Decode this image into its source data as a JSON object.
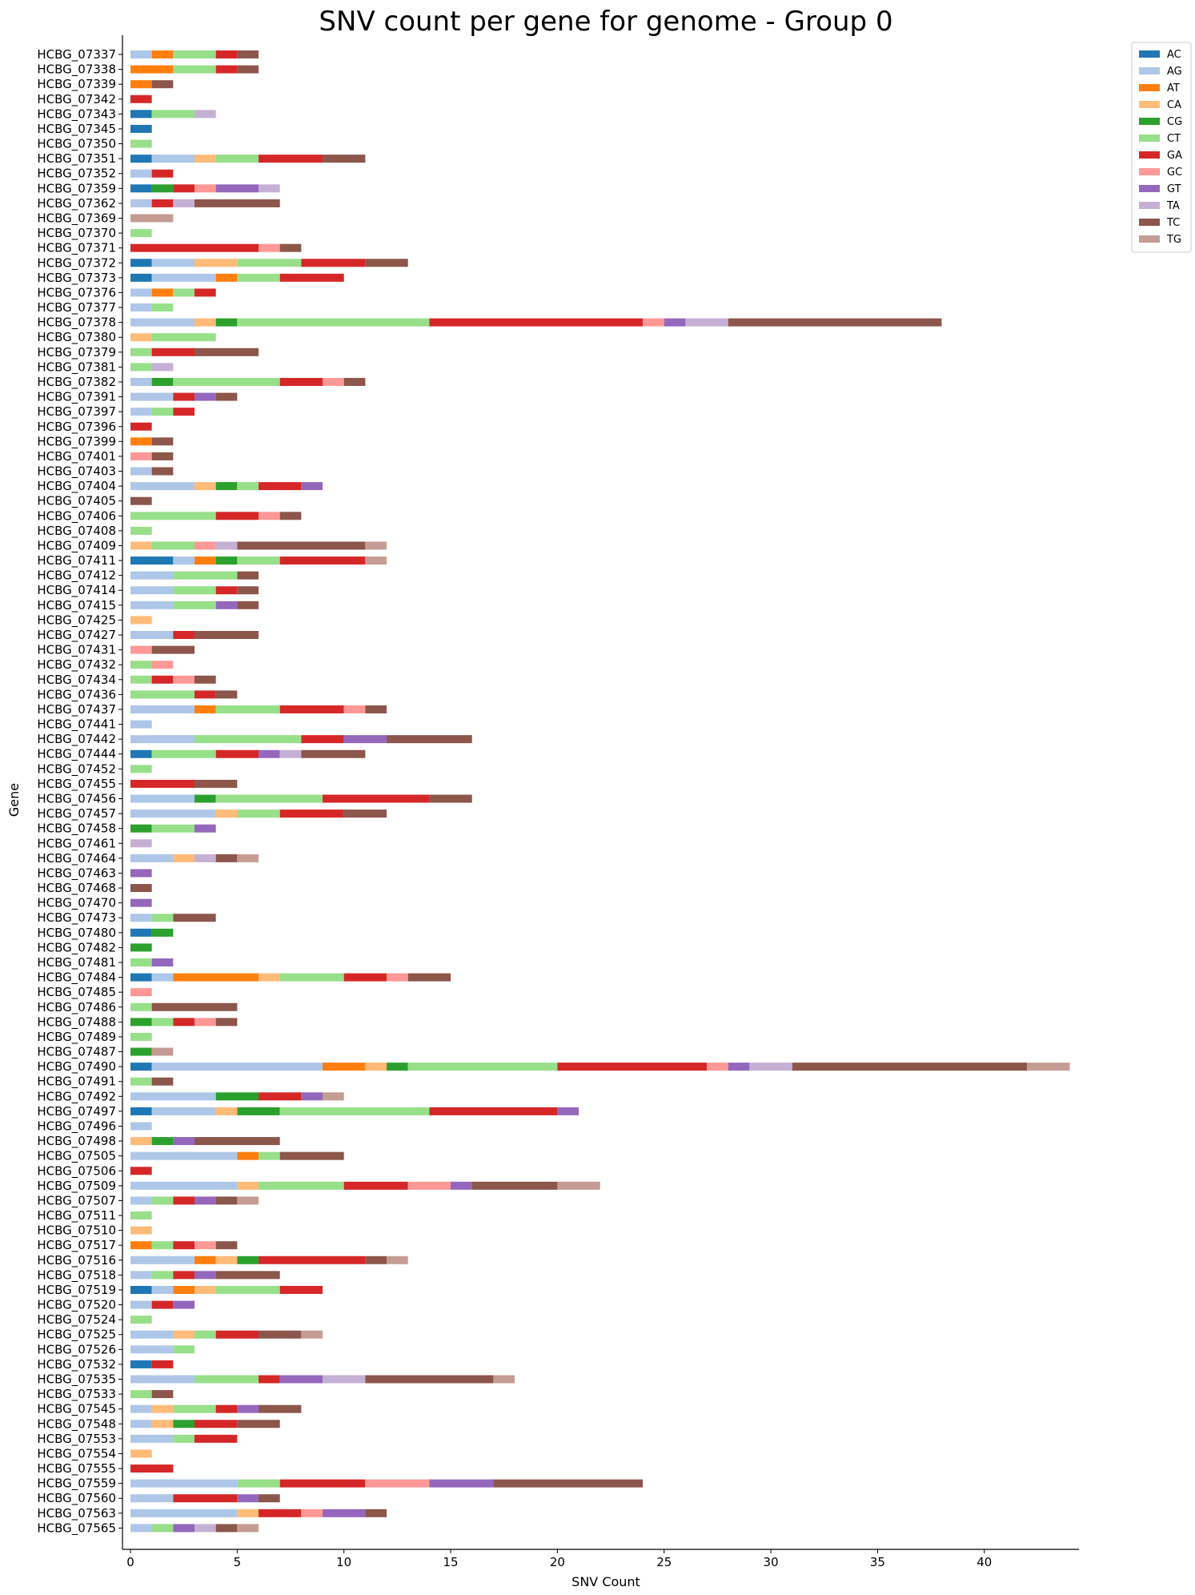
{
  "chart_data": {
    "type": "bar",
    "orientation": "horizontal",
    "stacked": true,
    "title": "SNV count per gene for genome - Group 0",
    "xlabel": "SNV Count",
    "ylabel": "Gene",
    "xlim": [
      0,
      44.5
    ],
    "xticks": [
      0,
      5,
      10,
      15,
      20,
      25,
      30,
      35,
      40
    ],
    "grid": false,
    "legend_position": "top-right outside",
    "colors": {
      "AC": "#1f77b4",
      "AG": "#aec7e8",
      "AT": "#ff7f0e",
      "CA": "#ffbb78",
      "CG": "#2ca02c",
      "CT": "#98df8a",
      "GA": "#d62728",
      "GC": "#ff9896",
      "GT": "#9467bd",
      "TA": "#c5b0d5",
      "TC": "#8c564b",
      "TG": "#c49c94"
    },
    "categories": [
      "HCBG_07337",
      "HCBG_07338",
      "HCBG_07339",
      "HCBG_07342",
      "HCBG_07343",
      "HCBG_07345",
      "HCBG_07350",
      "HCBG_07351",
      "HCBG_07352",
      "HCBG_07359",
      "HCBG_07362",
      "HCBG_07369",
      "HCBG_07370",
      "HCBG_07371",
      "HCBG_07372",
      "HCBG_07373",
      "HCBG_07376",
      "HCBG_07377",
      "HCBG_07378",
      "HCBG_07380",
      "HCBG_07379",
      "HCBG_07381",
      "HCBG_07382",
      "HCBG_07391",
      "HCBG_07397",
      "HCBG_07396",
      "HCBG_07399",
      "HCBG_07401",
      "HCBG_07403",
      "HCBG_07404",
      "HCBG_07405",
      "HCBG_07406",
      "HCBG_07408",
      "HCBG_07409",
      "HCBG_07411",
      "HCBG_07412",
      "HCBG_07414",
      "HCBG_07415",
      "HCBG_07425",
      "HCBG_07427",
      "HCBG_07431",
      "HCBG_07432",
      "HCBG_07434",
      "HCBG_07436",
      "HCBG_07437",
      "HCBG_07441",
      "HCBG_07442",
      "HCBG_07444",
      "HCBG_07452",
      "HCBG_07455",
      "HCBG_07456",
      "HCBG_07457",
      "HCBG_07458",
      "HCBG_07461",
      "HCBG_07464",
      "HCBG_07463",
      "HCBG_07468",
      "HCBG_07470",
      "HCBG_07473",
      "HCBG_07480",
      "HCBG_07482",
      "HCBG_07481",
      "HCBG_07484",
      "HCBG_07485",
      "HCBG_07486",
      "HCBG_07488",
      "HCBG_07489",
      "HCBG_07487",
      "HCBG_07490",
      "HCBG_07491",
      "HCBG_07492",
      "HCBG_07497",
      "HCBG_07496",
      "HCBG_07498",
      "HCBG_07505",
      "HCBG_07506",
      "HCBG_07509",
      "HCBG_07507",
      "HCBG_07511",
      "HCBG_07510",
      "HCBG_07517",
      "HCBG_07516",
      "HCBG_07518",
      "HCBG_07519",
      "HCBG_07520",
      "HCBG_07524",
      "HCBG_07525",
      "HCBG_07526",
      "HCBG_07532",
      "HCBG_07535",
      "HCBG_07533",
      "HCBG_07545",
      "HCBG_07548",
      "HCBG_07553",
      "HCBG_07554",
      "HCBG_07555",
      "HCBG_07559",
      "HCBG_07560",
      "HCBG_07563",
      "HCBG_07565"
    ],
    "series": [
      {
        "name": "AC",
        "values": [
          0,
          0,
          0,
          0,
          1,
          1,
          0,
          1,
          0,
          1,
          0,
          0,
          0,
          0,
          1,
          1,
          0,
          0,
          0,
          0,
          0,
          0,
          0,
          0,
          0,
          0,
          0,
          0,
          0,
          0,
          0,
          0,
          0,
          0,
          2,
          0,
          0,
          0,
          0,
          0,
          0,
          0,
          0,
          0,
          0,
          0,
          0,
          1,
          0,
          0,
          0,
          0,
          0,
          0,
          0,
          0,
          0,
          0,
          0,
          1,
          0,
          0,
          1,
          0,
          0,
          0,
          0,
          0,
          1,
          0,
          0,
          1,
          0,
          0,
          0,
          0,
          0,
          0,
          0,
          0,
          0,
          0,
          0,
          1,
          0,
          0,
          0,
          0,
          1,
          0,
          0,
          0,
          0,
          0,
          0,
          0,
          0,
          0,
          0,
          0
        ]
      },
      {
        "name": "AG",
        "values": [
          1,
          0,
          0,
          0,
          0,
          0,
          0,
          2,
          1,
          0,
          1,
          0,
          0,
          0,
          2,
          3,
          1,
          1,
          3,
          0,
          0,
          0,
          1,
          2,
          1,
          0,
          0,
          0,
          1,
          3,
          0,
          0,
          0,
          0,
          1,
          2,
          2,
          2,
          0,
          2,
          0,
          0,
          0,
          0,
          3,
          1,
          3,
          0,
          0,
          0,
          3,
          4,
          0,
          0,
          2,
          0,
          0,
          0,
          1,
          0,
          0,
          0,
          1,
          0,
          0,
          0,
          0,
          0,
          8,
          0,
          4,
          3,
          1,
          0,
          5,
          0,
          5,
          1,
          0,
          0,
          0,
          3,
          1,
          1,
          1,
          0,
          2,
          2,
          0,
          3,
          0,
          1,
          1,
          2,
          0,
          0,
          5,
          2,
          5,
          1
        ]
      },
      {
        "name": "AT",
        "values": [
          1,
          2,
          1,
          0,
          0,
          0,
          0,
          0,
          0,
          0,
          0,
          0,
          0,
          0,
          0,
          1,
          1,
          0,
          0,
          0,
          0,
          0,
          0,
          0,
          0,
          0,
          1,
          0,
          0,
          0,
          0,
          0,
          0,
          0,
          1,
          0,
          0,
          0,
          0,
          0,
          0,
          0,
          0,
          0,
          1,
          0,
          0,
          0,
          0,
          0,
          0,
          0,
          0,
          0,
          0,
          0,
          0,
          0,
          0,
          0,
          0,
          0,
          4,
          0,
          0,
          0,
          0,
          0,
          2,
          0,
          0,
          0,
          0,
          0,
          1,
          0,
          0,
          0,
          0,
          0,
          1,
          1,
          0,
          1,
          0,
          0,
          0,
          0,
          0,
          0,
          0,
          0,
          0,
          0,
          0,
          0,
          0,
          0,
          0,
          0
        ]
      },
      {
        "name": "CA",
        "values": [
          0,
          0,
          0,
          0,
          0,
          0,
          0,
          1,
          0,
          0,
          0,
          0,
          0,
          0,
          2,
          0,
          0,
          0,
          1,
          1,
          0,
          0,
          0,
          0,
          0,
          0,
          0,
          0,
          0,
          1,
          0,
          0,
          0,
          1,
          0,
          0,
          0,
          0,
          1,
          0,
          0,
          0,
          0,
          0,
          0,
          0,
          0,
          0,
          0,
          0,
          0,
          1,
          0,
          0,
          1,
          0,
          0,
          0,
          0,
          0,
          0,
          0,
          1,
          0,
          0,
          0,
          0,
          0,
          1,
          0,
          0,
          1,
          0,
          1,
          0,
          0,
          1,
          0,
          0,
          1,
          0,
          1,
          0,
          1,
          0,
          0,
          1,
          0,
          0,
          0,
          0,
          1,
          1,
          0,
          1,
          0,
          0,
          0,
          1,
          0
        ]
      },
      {
        "name": "CG",
        "values": [
          0,
          0,
          0,
          0,
          0,
          0,
          0,
          0,
          0,
          1,
          0,
          0,
          0,
          0,
          0,
          0,
          0,
          0,
          1,
          0,
          0,
          0,
          1,
          0,
          0,
          0,
          0,
          0,
          0,
          1,
          0,
          0,
          0,
          0,
          1,
          0,
          0,
          0,
          0,
          0,
          0,
          0,
          0,
          0,
          0,
          0,
          0,
          0,
          0,
          0,
          1,
          0,
          1,
          0,
          0,
          0,
          0,
          0,
          0,
          1,
          1,
          0,
          0,
          0,
          0,
          1,
          0,
          1,
          1,
          0,
          2,
          2,
          0,
          1,
          0,
          0,
          0,
          0,
          0,
          0,
          0,
          1,
          0,
          0,
          0,
          0,
          0,
          0,
          0,
          0,
          0,
          0,
          1,
          0,
          0,
          0,
          0,
          0,
          0,
          0
        ]
      },
      {
        "name": "CT",
        "values": [
          2,
          2,
          0,
          0,
          2,
          0,
          1,
          2,
          0,
          0,
          0,
          0,
          1,
          0,
          3,
          2,
          1,
          1,
          9,
          3,
          1,
          1,
          5,
          0,
          1,
          0,
          0,
          0,
          0,
          1,
          0,
          4,
          1,
          2,
          2,
          3,
          2,
          2,
          0,
          0,
          0,
          1,
          1,
          3,
          3,
          0,
          5,
          3,
          1,
          0,
          5,
          2,
          2,
          0,
          0,
          0,
          0,
          0,
          1,
          0,
          0,
          1,
          3,
          0,
          1,
          1,
          1,
          0,
          7,
          1,
          0,
          7,
          0,
          0,
          1,
          0,
          4,
          1,
          1,
          0,
          1,
          0,
          1,
          3,
          0,
          1,
          1,
          1,
          0,
          3,
          1,
          2,
          0,
          1,
          0,
          0,
          2,
          0,
          0,
          1
        ]
      },
      {
        "name": "GA",
        "values": [
          1,
          1,
          0,
          1,
          0,
          0,
          0,
          3,
          1,
          1,
          1,
          0,
          0,
          6,
          3,
          3,
          1,
          0,
          10,
          0,
          2,
          0,
          2,
          1,
          1,
          1,
          0,
          0,
          0,
          2,
          0,
          2,
          0,
          0,
          4,
          0,
          1,
          0,
          0,
          1,
          0,
          0,
          1,
          1,
          3,
          0,
          2,
          2,
          0,
          3,
          5,
          3,
          0,
          0,
          0,
          0,
          0,
          0,
          0,
          0,
          0,
          0,
          2,
          0,
          0,
          1,
          0,
          0,
          7,
          0,
          2,
          6,
          0,
          0,
          0,
          1,
          3,
          1,
          0,
          0,
          1,
          5,
          1,
          2,
          1,
          0,
          2,
          0,
          1,
          1,
          0,
          1,
          2,
          2,
          0,
          2,
          4,
          3,
          2,
          0
        ]
      },
      {
        "name": "GC",
        "values": [
          0,
          0,
          0,
          0,
          0,
          0,
          0,
          0,
          0,
          1,
          0,
          0,
          0,
          1,
          0,
          0,
          0,
          0,
          1,
          0,
          0,
          0,
          1,
          0,
          0,
          0,
          0,
          1,
          0,
          0,
          0,
          1,
          0,
          1,
          0,
          0,
          0,
          0,
          0,
          0,
          1,
          1,
          1,
          0,
          1,
          0,
          0,
          0,
          0,
          0,
          0,
          0,
          0,
          0,
          0,
          0,
          0,
          0,
          0,
          0,
          0,
          0,
          1,
          1,
          0,
          1,
          0,
          0,
          1,
          0,
          0,
          0,
          0,
          0,
          0,
          0,
          2,
          0,
          0,
          0,
          1,
          0,
          0,
          0,
          0,
          0,
          0,
          0,
          0,
          0,
          0,
          0,
          0,
          0,
          0,
          0,
          3,
          0,
          1,
          0
        ]
      },
      {
        "name": "GT",
        "values": [
          0,
          0,
          0,
          0,
          0,
          0,
          0,
          0,
          0,
          2,
          0,
          0,
          0,
          0,
          0,
          0,
          0,
          0,
          1,
          0,
          0,
          0,
          0,
          1,
          0,
          0,
          0,
          0,
          0,
          1,
          0,
          0,
          0,
          0,
          0,
          0,
          0,
          1,
          0,
          0,
          0,
          0,
          0,
          0,
          0,
          0,
          2,
          1,
          0,
          0,
          0,
          0,
          1,
          0,
          0,
          1,
          0,
          1,
          0,
          0,
          0,
          1,
          0,
          0,
          0,
          0,
          0,
          0,
          1,
          0,
          1,
          1,
          0,
          1,
          0,
          0,
          1,
          1,
          0,
          0,
          0,
          0,
          1,
          0,
          1,
          0,
          0,
          0,
          0,
          2,
          0,
          1,
          0,
          0,
          0,
          0,
          3,
          1,
          2,
          1
        ]
      },
      {
        "name": "TA",
        "values": [
          0,
          0,
          0,
          0,
          1,
          0,
          0,
          0,
          0,
          1,
          1,
          0,
          0,
          0,
          0,
          0,
          0,
          0,
          2,
          0,
          0,
          1,
          0,
          0,
          0,
          0,
          0,
          0,
          0,
          0,
          0,
          0,
          0,
          1,
          0,
          0,
          0,
          0,
          0,
          0,
          0,
          0,
          0,
          0,
          0,
          0,
          0,
          1,
          0,
          0,
          0,
          0,
          0,
          1,
          1,
          0,
          0,
          0,
          0,
          0,
          0,
          0,
          0,
          0,
          0,
          0,
          0,
          0,
          2,
          0,
          0,
          0,
          0,
          0,
          0,
          0,
          0,
          0,
          0,
          0,
          0,
          0,
          0,
          0,
          0,
          0,
          0,
          0,
          0,
          2,
          0,
          0,
          0,
          0,
          0,
          0,
          0,
          0,
          0,
          1
        ]
      },
      {
        "name": "TC",
        "values": [
          1,
          1,
          1,
          0,
          0,
          0,
          0,
          2,
          0,
          0,
          4,
          0,
          0,
          1,
          2,
          0,
          0,
          0,
          10,
          0,
          3,
          0,
          1,
          1,
          0,
          0,
          1,
          1,
          1,
          0,
          1,
          1,
          0,
          6,
          0,
          1,
          1,
          1,
          0,
          3,
          2,
          0,
          1,
          1,
          1,
          0,
          4,
          3,
          0,
          2,
          2,
          2,
          0,
          0,
          1,
          0,
          1,
          0,
          2,
          0,
          0,
          0,
          2,
          0,
          4,
          1,
          0,
          0,
          11,
          1,
          0,
          0,
          0,
          4,
          3,
          0,
          4,
          1,
          0,
          0,
          1,
          1,
          3,
          0,
          0,
          0,
          2,
          0,
          0,
          6,
          1,
          2,
          2,
          0,
          0,
          0,
          7,
          1,
          1,
          1
        ]
      },
      {
        "name": "TG",
        "values": [
          0,
          0,
          0,
          0,
          0,
          0,
          0,
          0,
          0,
          0,
          0,
          2,
          0,
          0,
          0,
          0,
          0,
          0,
          0,
          0,
          0,
          0,
          0,
          0,
          0,
          0,
          0,
          0,
          0,
          0,
          0,
          0,
          0,
          1,
          1,
          0,
          0,
          0,
          0,
          0,
          0,
          0,
          0,
          0,
          0,
          0,
          0,
          0,
          0,
          0,
          0,
          0,
          0,
          0,
          1,
          0,
          0,
          0,
          0,
          0,
          0,
          0,
          0,
          0,
          0,
          0,
          0,
          1,
          2,
          0,
          1,
          0,
          0,
          0,
          0,
          0,
          2,
          1,
          0,
          0,
          0,
          1,
          0,
          0,
          0,
          0,
          1,
          0,
          0,
          1,
          0,
          0,
          0,
          0,
          0,
          0,
          0,
          0,
          0,
          1
        ]
      }
    ]
  }
}
